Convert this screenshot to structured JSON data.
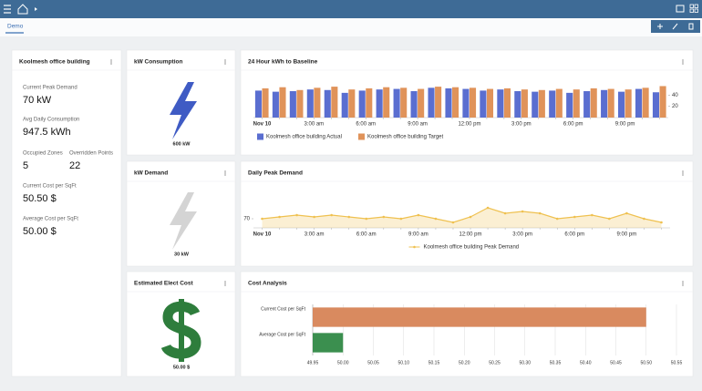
{
  "header": {
    "tab": "Demo"
  },
  "building": {
    "title": "Koolmesh office building",
    "stats": [
      {
        "label": "Current Peak Demand",
        "value": "70 kW"
      },
      {
        "label": "Avg Daily Consumption",
        "value": "947.5 kWh"
      },
      {
        "label": "Occupied Zones",
        "value": "5"
      },
      {
        "label": "Overridden Points",
        "value": "22"
      },
      {
        "label": "Current Cost per SqFt",
        "value": "50.50 $"
      },
      {
        "label": "Average Cost per SqFt",
        "value": "50.00 $"
      }
    ]
  },
  "kw_consumption": {
    "title": "kW Consumption",
    "label": "600 kW"
  },
  "kw_demand": {
    "title": "kW Demand",
    "label": "30 kW"
  },
  "elect_cost": {
    "title": "Estimated Elect Cost",
    "label": "50.00 $"
  },
  "chart_data": [
    {
      "type": "bar",
      "title": "24 Hour kWh to Baseline",
      "categories": [
        "Nov 10",
        null,
        null,
        "3:00 am",
        null,
        null,
        "6:00 am",
        null,
        null,
        "9:00 am",
        null,
        null,
        "12:00 pm",
        null,
        null,
        "3:00 pm",
        null,
        null,
        "6:00 pm",
        null,
        null,
        "9:00 pm",
        null,
        null
      ],
      "series": [
        {
          "name": "Koolmesh office building Actual",
          "color": "#5a6ed0",
          "values": [
            48,
            46,
            47,
            50,
            49,
            44,
            48,
            50,
            51,
            47,
            53,
            52,
            51,
            48,
            50,
            47,
            46,
            48,
            44,
            47,
            49,
            46,
            51,
            45
          ]
        },
        {
          "name": "Koolmesh office building Target",
          "color": "#e0935a",
          "values": [
            52,
            54,
            49,
            53,
            55,
            50,
            52,
            54,
            53,
            51,
            55,
            54,
            53,
            51,
            52,
            50,
            49,
            51,
            50,
            52,
            51,
            50,
            53,
            56
          ]
        }
      ],
      "ylim": [
        0,
        60
      ],
      "yticks": [
        20,
        40
      ]
    },
    {
      "type": "line",
      "title": "Daily Peak Demand",
      "categories": [
        "Nov 10",
        null,
        null,
        "3:00 am",
        null,
        null,
        "6:00 am",
        null,
        null,
        "9:00 am",
        null,
        null,
        "12:00 pm",
        null,
        null,
        "3:00 pm",
        null,
        null,
        "6:00 pm",
        null,
        null,
        "9:00 pm",
        null,
        null
      ],
      "series": [
        {
          "name": "Koolmesh office building Peak Demand",
          "color": "#efc150",
          "values": [
            70,
            71,
            72,
            71,
            72,
            71,
            70,
            71,
            70,
            72,
            70,
            68,
            71,
            76,
            73,
            74,
            73,
            70,
            71,
            72,
            70,
            73,
            70,
            68
          ]
        }
      ],
      "ylim": [
        65,
        90
      ],
      "yticks": [
        70
      ]
    },
    {
      "type": "hbar",
      "title": "Cost Analysis",
      "categories": [
        "Current Cost per SqFt",
        "Average Cost per SqFt"
      ],
      "values": [
        50.5,
        50
      ],
      "colors": [
        "#d98a5f",
        "#3b8f4f"
      ],
      "xlim": [
        49.95,
        50.55
      ],
      "xticks": [
        49.95,
        {
          "value": 50,
          "label": "50.00"
        },
        50.05,
        {
          "value": 50.1,
          "label": "50.10"
        },
        50.15,
        {
          "value": 50.2,
          "label": "50.20"
        },
        50.25,
        {
          "value": 50.3,
          "label": "50.30"
        },
        50.35,
        {
          "value": 50.4,
          "label": "50.40"
        },
        50.45,
        {
          "value": 50.5,
          "label": "50.50"
        },
        50.55
      ],
      "grid": true
    }
  ]
}
